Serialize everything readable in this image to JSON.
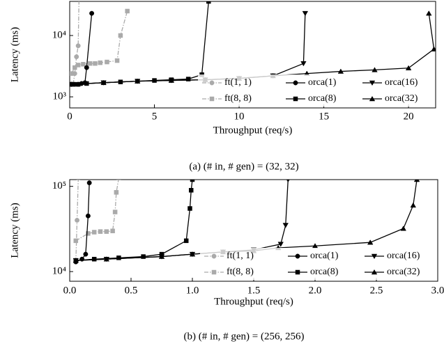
{
  "chart_data": [
    {
      "type": "line",
      "caption": "(a) (# in, # gen) = (32, 32)",
      "xlabel": "Throughput (req/s)",
      "ylabel": "Latency (ms)",
      "log_y": true,
      "legend": "lower right",
      "xlim": [
        0,
        21.6
      ],
      "xticks": [
        0,
        5,
        10,
        15,
        20
      ],
      "ylim": [
        660,
        36000
      ],
      "yticks": [
        {
          "value": 1000,
          "label": "10³"
        },
        {
          "value": 10000,
          "label": "10⁴"
        }
      ],
      "series": [
        {
          "name": "ft(1, 1)",
          "color": "#aaaaaa",
          "marker": "circle",
          "dash": "dashdot",
          "x": [
            0.2,
            0.3,
            0.4,
            0.5,
            0.55
          ],
          "values": [
            1600,
            2400,
            4500,
            6800,
            40000
          ]
        },
        {
          "name": "ft(8, 8)",
          "color": "#aaaaaa",
          "marker": "square",
          "dash": "dashdot",
          "x": [
            0.1,
            0.3,
            0.5,
            0.8,
            1.2,
            1.5,
            1.8,
            2.2,
            2.8,
            3.0,
            3.4
          ],
          "values": [
            2400,
            3000,
            3300,
            3400,
            3500,
            3500,
            3600,
            3700,
            3900,
            10000,
            25000
          ]
        },
        {
          "name": "orca(1)",
          "color": "#000000",
          "marker": "circle",
          "dash": "solid",
          "x": [
            0.1,
            0.3,
            0.5,
            0.7,
            0.9,
            1.0,
            1.3
          ],
          "values": [
            1600,
            1600,
            1600,
            1650,
            1700,
            3000,
            23000
          ]
        },
        {
          "name": "orca(8)",
          "color": "#000000",
          "marker": "square",
          "dash": "solid",
          "x": [
            0.1,
            0.5,
            1,
            2,
            3,
            4,
            5,
            6,
            7,
            7.8,
            8.2
          ],
          "values": [
            1600,
            1600,
            1650,
            1700,
            1750,
            1800,
            1850,
            1900,
            1950,
            2300,
            36000
          ]
        },
        {
          "name": "orca(16)",
          "color": "#000000",
          "marker": "tri-down",
          "dash": "solid",
          "x": [
            0.1,
            2,
            4,
            6,
            8,
            10,
            12,
            13.8,
            13.9
          ],
          "values": [
            1600,
            1700,
            1800,
            1850,
            1900,
            2000,
            2200,
            3500,
            23000
          ]
        },
        {
          "name": "orca(32)",
          "color": "#000000",
          "marker": "tri-up",
          "dash": "solid",
          "x": [
            0.1,
            2,
            4,
            6,
            8,
            10,
            12,
            14,
            16,
            18,
            20,
            21.5,
            21.2
          ],
          "values": [
            1600,
            1700,
            1800,
            1850,
            1900,
            2000,
            2200,
            2400,
            2600,
            2750,
            2950,
            6000,
            23000
          ]
        }
      ]
    },
    {
      "type": "line",
      "caption": "(b) (# in, # gen) = (256, 256)",
      "xlabel": "Throughput (req/s)",
      "ylabel": "Latency (ms)",
      "log_y": true,
      "legend": "lower right",
      "xlim": [
        0,
        3.0
      ],
      "xticks": [
        {
          "value": 0,
          "label": "0.0"
        },
        0.5,
        {
          "value": 1,
          "label": "1.0"
        },
        1.5,
        {
          "value": 2,
          "label": "2.0"
        },
        2.5,
        {
          "value": 3,
          "label": "3.0"
        }
      ],
      "ylim": [
        7700,
        120000
      ],
      "yticks": [
        {
          "value": 10000,
          "label": "10⁴"
        },
        {
          "value": 100000,
          "label": "10⁵"
        }
      ],
      "series": [
        {
          "name": "ft(1, 1)",
          "color": "#aaaaaa",
          "marker": "circle",
          "dash": "dashdot",
          "x": [
            0.05,
            0.06,
            0.07
          ],
          "values": [
            13000,
            40000,
            125000
          ]
        },
        {
          "name": "ft(8, 8)",
          "color": "#aaaaaa",
          "marker": "square",
          "dash": "dashdot",
          "x": [
            0.05,
            0.15,
            0.2,
            0.25,
            0.3,
            0.35,
            0.37,
            0.38,
            0.4
          ],
          "values": [
            23000,
            28000,
            29000,
            29500,
            29500,
            30000,
            50000,
            85000,
            125000
          ]
        },
        {
          "name": "orca(1)",
          "color": "#000000",
          "marker": "circle",
          "dash": "solid",
          "x": [
            0.05,
            0.1,
            0.13,
            0.15,
            0.16
          ],
          "values": [
            13000,
            14000,
            16000,
            45000,
            110000
          ]
        },
        {
          "name": "orca(8)",
          "color": "#000000",
          "marker": "square",
          "dash": "solid",
          "x": [
            0.05,
            0.2,
            0.4,
            0.6,
            0.75,
            0.95,
            0.98,
            0.99,
            1.0
          ],
          "values": [
            13500,
            14000,
            14500,
            15000,
            16000,
            23000,
            55000,
            90000,
            120000
          ]
        },
        {
          "name": "orca(16)",
          "color": "#000000",
          "marker": "tri-down",
          "dash": "solid",
          "x": [
            0.05,
            0.3,
            0.75,
            1.0,
            1.25,
            1.5,
            1.72,
            1.76,
            1.78
          ],
          "values": [
            13500,
            14000,
            15000,
            16000,
            17000,
            18000,
            21000,
            35000,
            120000
          ]
        },
        {
          "name": "orca(32)",
          "color": "#000000",
          "marker": "tri-up",
          "dash": "solid",
          "x": [
            0.05,
            0.3,
            0.75,
            1.0,
            1.25,
            1.5,
            1.7,
            2.0,
            2.45,
            2.72,
            2.8,
            2.83
          ],
          "values": [
            13500,
            14000,
            15000,
            16000,
            17000,
            17500,
            19000,
            20000,
            22000,
            32000,
            60000,
            120000
          ]
        }
      ]
    }
  ]
}
